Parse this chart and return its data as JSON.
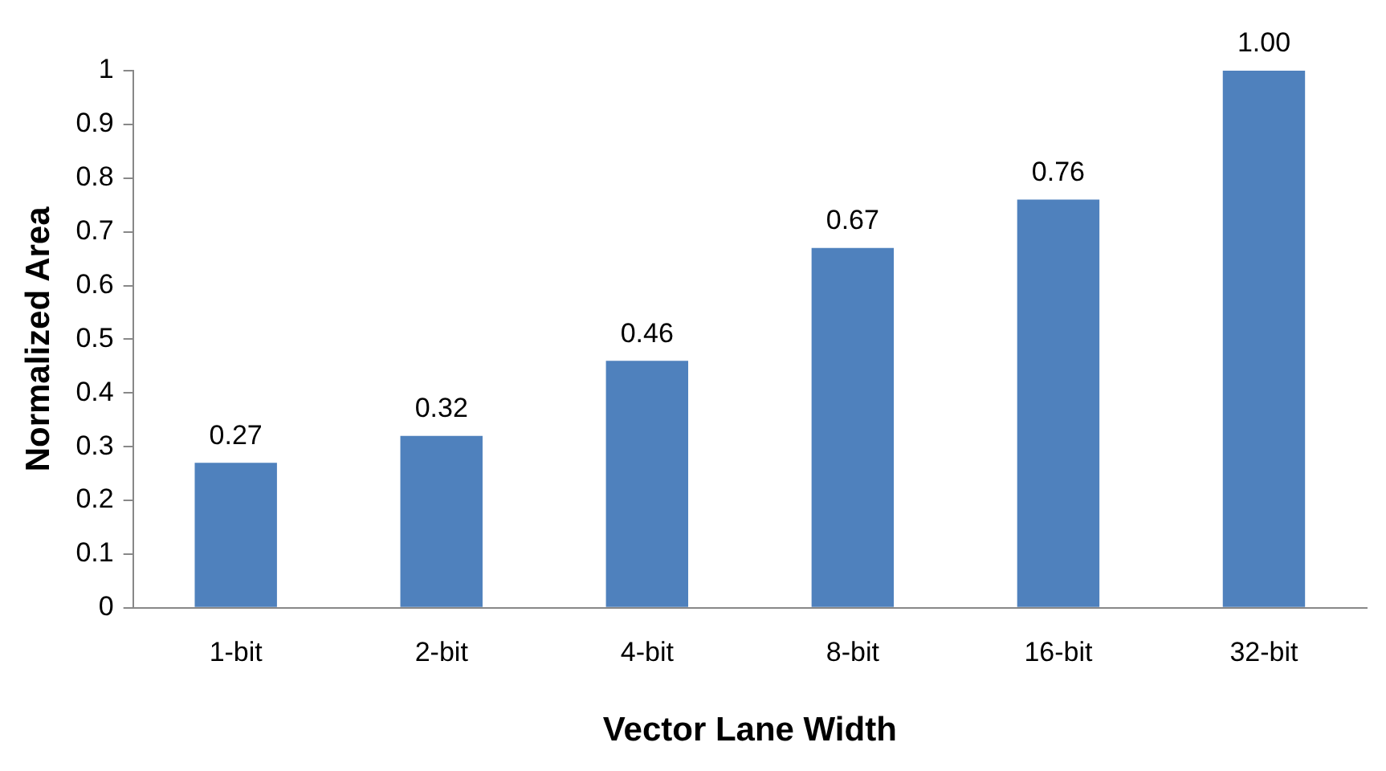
{
  "chart_data": {
    "type": "bar",
    "xlabel": "Vector Lane Width",
    "ylabel": "Normalized Area",
    "categories": [
      "1-bit",
      "2-bit",
      "4-bit",
      "8-bit",
      "16-bit",
      "32-bit"
    ],
    "values": [
      0.27,
      0.32,
      0.46,
      0.67,
      0.76,
      1.0
    ],
    "value_labels": [
      "0.27",
      "0.32",
      "0.46",
      "0.67",
      "0.76",
      "1.00"
    ],
    "color": "#4f81bd",
    "ylim": [
      0,
      1
    ],
    "yticks": [
      0,
      0.1,
      0.2,
      0.3,
      0.4,
      0.5,
      0.6,
      0.7,
      0.8,
      0.9,
      1
    ],
    "grid": false,
    "legend": false
  }
}
